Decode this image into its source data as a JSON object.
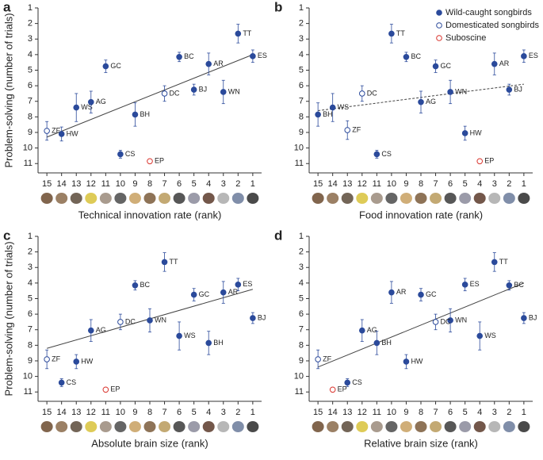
{
  "chart_data": [
    {
      "type": "scatter",
      "panel": "a",
      "x_label": "Technical innovation rate (rank)",
      "y_label": "Problem-solving (number of trials)",
      "xlim": [
        15.6,
        0.4
      ],
      "xticks": [
        15,
        14,
        13,
        12,
        11,
        10,
        9,
        8,
        7,
        6,
        5,
        4,
        3,
        2,
        1
      ],
      "ylim": [
        11.6,
        1
      ],
      "yticks": [
        1,
        2,
        3,
        4,
        5,
        6,
        7,
        8,
        9,
        10,
        11
      ],
      "series": [
        {
          "color": "#2b4a9b",
          "filled": true,
          "labels": [
            "HW",
            "WS",
            "AG",
            "GC",
            "CS",
            "BH",
            "BC",
            "BJ",
            "AR",
            "WN",
            "TT",
            "ES"
          ],
          "x": [
            14,
            13,
            12,
            11,
            10,
            9,
            6,
            5,
            4,
            3,
            2,
            1
          ],
          "values": [
            9.1,
            7.4,
            7.05,
            4.75,
            10.4,
            7.85,
            4.15,
            6.25,
            4.6,
            6.4,
            2.65,
            4.1
          ],
          "errors": [
            0.45,
            0.9,
            0.7,
            0.4,
            0.25,
            0.75,
            0.3,
            0.35,
            0.7,
            0.75,
            0.6,
            0.4
          ]
        },
        {
          "color": "#2b4a9b",
          "filled": false,
          "labels": [
            "ZF",
            "DC"
          ],
          "x": [
            15,
            7
          ],
          "values": [
            8.9,
            6.5
          ],
          "errors": [
            0.6,
            0.5
          ]
        },
        {
          "color": "#d9322b",
          "filled": false,
          "labels": [
            "EP"
          ],
          "x": [
            8
          ],
          "values": [
            10.85
          ]
        }
      ],
      "trend": {
        "x": [
          15,
          1
        ],
        "y": [
          9.3,
          4.0
        ],
        "dashed": false
      }
    },
    {
      "type": "scatter",
      "panel": "b",
      "x_label": "Food innovation rate (rank)",
      "xlim": [
        15.6,
        0.4
      ],
      "xticks": [
        15,
        14,
        13,
        12,
        11,
        10,
        9,
        8,
        7,
        6,
        5,
        4,
        3,
        2,
        1
      ],
      "ylim": [
        11.6,
        1
      ],
      "yticks": [
        1,
        2,
        3,
        4,
        5,
        6,
        7,
        8,
        9,
        10,
        11
      ],
      "series": [
        {
          "name": "Wild-caught songbirds",
          "color": "#2b4a9b",
          "filled": true,
          "labels": [
            "BH",
            "WS",
            "CS",
            "TT",
            "BC",
            "AG",
            "GC",
            "WN",
            "HW",
            "AR",
            "BJ",
            "ES"
          ],
          "x": [
            15,
            14,
            11,
            10,
            9,
            8,
            7,
            6,
            5,
            3,
            2,
            1
          ],
          "values": [
            7.85,
            7.4,
            10.4,
            2.65,
            4.15,
            7.05,
            4.75,
            6.4,
            9.05,
            4.6,
            6.25,
            4.1
          ],
          "errors": [
            0.75,
            0.9,
            0.25,
            0.6,
            0.3,
            0.7,
            0.4,
            0.75,
            0.45,
            0.7,
            0.35,
            0.4
          ]
        },
        {
          "name": "Domesticated songbirds",
          "color": "#2b4a9b",
          "filled": false,
          "labels": [
            "ZF",
            "DC"
          ],
          "x": [
            13,
            12
          ],
          "values": [
            8.85,
            6.5
          ],
          "errors": [
            0.6,
            0.5
          ]
        },
        {
          "name": "Suboscine",
          "color": "#d9322b",
          "filled": false,
          "labels": [
            "EP"
          ],
          "x": [
            4
          ],
          "values": [
            10.85
          ]
        }
      ],
      "trend": {
        "x": [
          15,
          1
        ],
        "y": [
          7.6,
          5.9
        ],
        "dashed": true
      }
    },
    {
      "type": "scatter",
      "panel": "c",
      "x_label": "Absolute brain size (rank)",
      "y_label": "Problem-solving (number of trials)",
      "xlim": [
        15.6,
        0.4
      ],
      "xticks": [
        15,
        14,
        13,
        12,
        11,
        10,
        9,
        8,
        7,
        6,
        5,
        4,
        3,
        2,
        1
      ],
      "ylim": [
        11.6,
        1
      ],
      "yticks": [
        1,
        2,
        3,
        4,
        5,
        6,
        7,
        8,
        9,
        10,
        11
      ],
      "series": [
        {
          "color": "#2b4a9b",
          "filled": true,
          "labels": [
            "CS",
            "HW",
            "AG",
            "BC",
            "WN",
            "TT",
            "WS",
            "GC",
            "BH",
            "AR",
            "ES",
            "BJ"
          ],
          "x": [
            14,
            13,
            12,
            9,
            8,
            7,
            6,
            5,
            4,
            3,
            2,
            1
          ],
          "values": [
            10.4,
            9.05,
            7.05,
            4.15,
            6.4,
            2.65,
            7.4,
            4.75,
            7.85,
            4.6,
            4.1,
            6.25
          ],
          "errors": [
            0.25,
            0.45,
            0.7,
            0.3,
            0.75,
            0.6,
            0.9,
            0.4,
            0.75,
            0.7,
            0.4,
            0.35
          ]
        },
        {
          "color": "#2b4a9b",
          "filled": false,
          "labels": [
            "ZF",
            "DC"
          ],
          "x": [
            15,
            10
          ],
          "values": [
            8.9,
            6.5
          ],
          "errors": [
            0.6,
            0.5
          ]
        },
        {
          "color": "#d9322b",
          "filled": false,
          "labels": [
            "EP"
          ],
          "x": [
            11
          ],
          "values": [
            10.85
          ]
        }
      ],
      "trend": {
        "x": [
          15,
          1
        ],
        "y": [
          8.2,
          4.4
        ],
        "dashed": false
      }
    },
    {
      "type": "scatter",
      "panel": "d",
      "x_label": "Relative brain size (rank)",
      "xlim": [
        15.6,
        0.4
      ],
      "xticks": [
        15,
        14,
        13,
        12,
        11,
        10,
        9,
        8,
        7,
        6,
        5,
        4,
        3,
        2,
        1
      ],
      "ylim": [
        11.6,
        1
      ],
      "yticks": [
        1,
        2,
        3,
        4,
        5,
        6,
        7,
        8,
        9,
        10,
        11
      ],
      "series": [
        {
          "color": "#2b4a9b",
          "filled": true,
          "labels": [
            "CS",
            "AG",
            "BH",
            "AR",
            "HW",
            "GC",
            "WN",
            "ES",
            "WS",
            "TT",
            "BC",
            "BJ"
          ],
          "x": [
            13,
            12,
            11,
            10,
            9,
            8,
            6,
            5,
            4,
            3,
            2,
            1
          ],
          "values": [
            10.4,
            7.05,
            7.85,
            4.6,
            9.05,
            4.75,
            6.4,
            4.1,
            7.4,
            2.65,
            4.15,
            6.25
          ],
          "errors": [
            0.25,
            0.7,
            0.75,
            0.7,
            0.45,
            0.4,
            0.75,
            0.4,
            0.9,
            0.6,
            0.3,
            0.35
          ]
        },
        {
          "color": "#2b4a9b",
          "filled": false,
          "labels": [
            "ZF",
            "DC"
          ],
          "x": [
            15,
            7
          ],
          "values": [
            8.9,
            6.5
          ],
          "errors": [
            0.6,
            0.5
          ]
        },
        {
          "color": "#d9322b",
          "filled": false,
          "labels": [
            "EP"
          ],
          "x": [
            14
          ],
          "values": [
            10.85
          ]
        }
      ],
      "trend": {
        "x": [
          15,
          1
        ],
        "y": [
          9.4,
          4.0
        ],
        "dashed": false
      }
    }
  ]
}
